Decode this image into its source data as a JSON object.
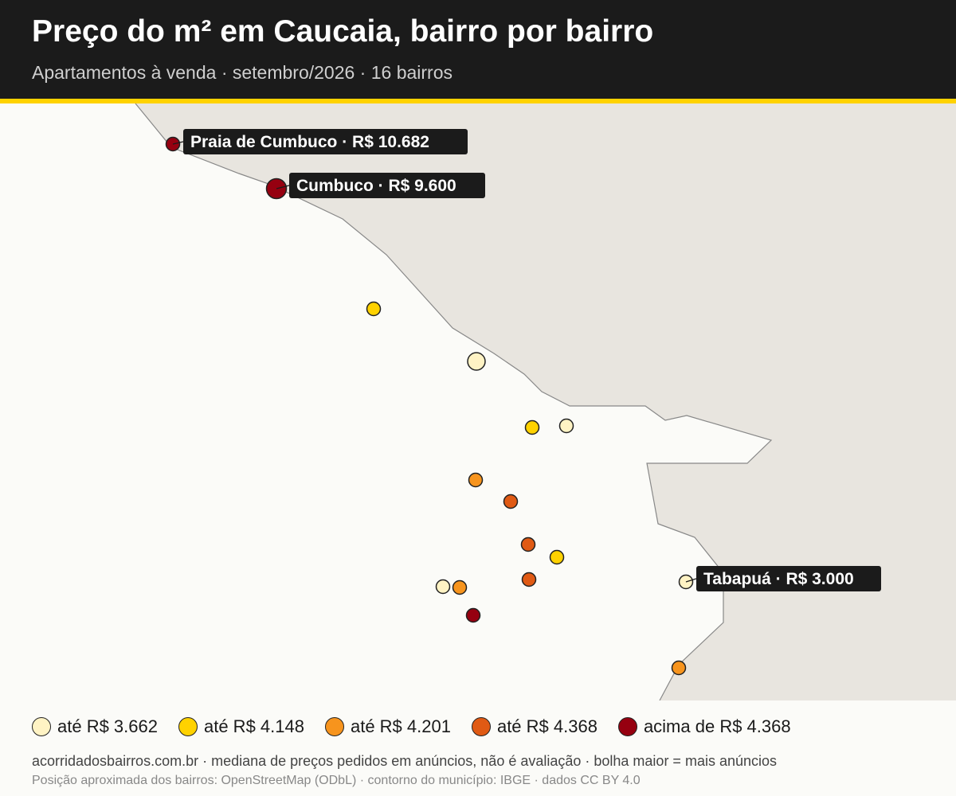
{
  "header": {
    "title": "Preço do m² em Caucaia, bairro por bairro",
    "subtitle": "Apartamentos à venda · setembro/2026 · 16 bairros"
  },
  "colors": {
    "header_bg": "#1b1b1b",
    "accent": "#ffd200",
    "land": "#fbfbf8",
    "outside": "#e8e5df",
    "boundary": "#888888"
  },
  "legend": {
    "items": [
      {
        "label": "até R$ 3.662",
        "color": "#fff3c4"
      },
      {
        "label": "até R$ 4.148",
        "color": "#ffd200"
      },
      {
        "label": "até R$ 4.201",
        "color": "#f7941d"
      },
      {
        "label": "até R$ 4.368",
        "color": "#e05a14"
      },
      {
        "label": "acima de R$ 4.368",
        "color": "#960010"
      }
    ]
  },
  "markers": [
    {
      "name": "Praia de Cumbuco",
      "label": "Praia de Cumbuco · R$ 10.682",
      "tier": 4,
      "size": "small"
    },
    {
      "name": "Cumbuco",
      "label": "Cumbuco · R$ 9.600",
      "tier": 4,
      "size": "large"
    },
    {
      "name": "",
      "label": "",
      "tier": 1,
      "size": "small"
    },
    {
      "name": "",
      "label": "",
      "tier": 0,
      "size": "medium"
    },
    {
      "name": "",
      "label": "",
      "tier": 1,
      "size": "small"
    },
    {
      "name": "",
      "label": "",
      "tier": 0,
      "size": "small"
    },
    {
      "name": "",
      "label": "",
      "tier": 2,
      "size": "small"
    },
    {
      "name": "",
      "label": "",
      "tier": 3,
      "size": "small"
    },
    {
      "name": "",
      "label": "",
      "tier": 3,
      "size": "small"
    },
    {
      "name": "",
      "label": "",
      "tier": 1,
      "size": "small"
    },
    {
      "name": "",
      "label": "",
      "tier": 0,
      "size": "small"
    },
    {
      "name": "",
      "label": "",
      "tier": 2,
      "size": "small"
    },
    {
      "name": "",
      "label": "",
      "tier": 3,
      "size": "small"
    },
    {
      "name": "",
      "label": "",
      "tier": 4,
      "size": "small"
    },
    {
      "name": "Tabapuá",
      "label": "Tabapuá · R$ 3.000",
      "tier": 0,
      "size": "small"
    },
    {
      "name": "",
      "label": "",
      "tier": 2,
      "size": "small"
    }
  ],
  "footer": {
    "line1": "acorridadosbairros.com.br · mediana de preços pedidos em anúncios, não é avaliação · bolha maior = mais anúncios",
    "line2": "Posição aproximada dos bairros: OpenStreetMap (ODbL) · contorno do município: IBGE · dados CC BY 4.0"
  }
}
